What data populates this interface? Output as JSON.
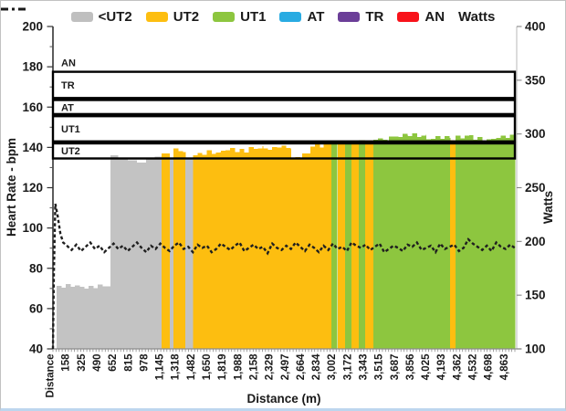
{
  "chart_data": {
    "type": "area",
    "title": "",
    "x_axis": {
      "title": "Distance (m)",
      "range_m": [
        0,
        4950
      ],
      "tick_labels": [
        "Distance",
        "158",
        "325",
        "490",
        "652",
        "815",
        "978",
        "1,145",
        "1,318",
        "1,482",
        "1,650",
        "1,819",
        "1,988",
        "2,158",
        "2,329",
        "2,497",
        "2,664",
        "2,834",
        "3,002",
        "3,172",
        "3,343",
        "3,515",
        "3,687",
        "3,856",
        "4,025",
        "4,193",
        "4,362",
        "4,532",
        "4,698",
        "4,863"
      ]
    },
    "y_left": {
      "title": "Heart Rate - bpm",
      "min": 40,
      "max": 200,
      "major_ticks": [
        200,
        180,
        160,
        140,
        120,
        100,
        80,
        60,
        40
      ],
      "minor_tick_step": 10
    },
    "y_right": {
      "title": "Watts",
      "min": 100,
      "max": 400,
      "major_ticks": [
        400,
        350,
        300,
        250,
        200,
        150,
        100
      ]
    },
    "legend": [
      {
        "label": "<UT2",
        "color": "#BFBFBF",
        "glyph": "swatch"
      },
      {
        "label": "UT2",
        "color": "#FDBE10",
        "glyph": "swatch"
      },
      {
        "label": "UT1",
        "color": "#8DC63F",
        "glyph": "swatch"
      },
      {
        "label": "AT",
        "color": "#29ABE2",
        "glyph": "swatch"
      },
      {
        "label": "TR",
        "color": "#6B3E98",
        "glyph": "swatch"
      },
      {
        "label": "AN",
        "color": "#F8121A",
        "glyph": "swatch"
      },
      {
        "label": "Watts",
        "color": "#1A1A1A",
        "glyph": "dashed-line"
      }
    ],
    "zone_colors": {
      "<UT2": "#C3C3C3",
      "UT2": "#FDBE10",
      "UT1": "#8DC63F",
      "AT": "#29ABE2",
      "TR": "#6B3E98",
      "AN": "#F8121A"
    },
    "zone_bands": [
      {
        "label": "AN",
        "hr_from": 177.5,
        "hr_to": 200,
        "boxed": false
      },
      {
        "label": "TR",
        "hr_from": 164.5,
        "hr_to": 177.5,
        "boxed": true
      },
      {
        "label": "AT",
        "hr_from": 156.5,
        "hr_to": 163.5,
        "boxed": true
      },
      {
        "label": "UT1",
        "hr_from": 143,
        "hr_to": 155.5,
        "boxed": true
      },
      {
        "label": "UT2",
        "hr_from": 134.5,
        "hr_to": 142,
        "boxed": true
      }
    ],
    "hr_segments": [
      [
        40,
        615,
        "<UT2",
        71
      ],
      [
        615,
        700,
        "<UT2",
        136
      ],
      [
        700,
        800,
        "<UT2",
        135
      ],
      [
        800,
        900,
        "<UT2",
        133.5
      ],
      [
        900,
        1000,
        "<UT2",
        132.5
      ],
      [
        1000,
        1090,
        "<UT2",
        134
      ],
      [
        1090,
        1164,
        "<UT2",
        135.5
      ],
      [
        1164,
        1250,
        "UT2",
        137
      ],
      [
        1250,
        1290,
        "<UT2",
        135
      ],
      [
        1290,
        1420,
        "UT2",
        138.5
      ],
      [
        1420,
        1500,
        "<UT2",
        134.5
      ],
      [
        1500,
        1650,
        "UT2",
        136.5
      ],
      [
        1650,
        1800,
        "UT2",
        137.5
      ],
      [
        1800,
        1950,
        "UT2",
        139
      ],
      [
        1950,
        2100,
        "UT2",
        138
      ],
      [
        2100,
        2250,
        "UT2",
        140
      ],
      [
        2250,
        2400,
        "UT2",
        139
      ],
      [
        2400,
        2550,
        "UT2",
        140.5
      ],
      [
        2550,
        2670,
        "UT2",
        134.8
      ],
      [
        2670,
        2760,
        "UT2",
        137
      ],
      [
        2760,
        2900,
        "UT2",
        141
      ],
      [
        2900,
        2985,
        "UT2",
        142
      ],
      [
        2985,
        3050,
        "UT1",
        143
      ],
      [
        3050,
        3130,
        "UT2",
        142
      ],
      [
        3130,
        3200,
        "UT1",
        143
      ],
      [
        3200,
        3275,
        "UT2",
        142.5
      ],
      [
        3275,
        3345,
        "UT1",
        143.5
      ],
      [
        3345,
        3435,
        "UT2",
        142.5
      ],
      [
        3435,
        3600,
        "UT1",
        144
      ],
      [
        3600,
        3800,
        "UT1",
        145.5
      ],
      [
        3800,
        4000,
        "UT1",
        146
      ],
      [
        4000,
        4255,
        "UT1",
        144.5
      ],
      [
        4255,
        4315,
        "UT2",
        143.5
      ],
      [
        4315,
        4500,
        "UT1",
        145.5
      ],
      [
        4500,
        4700,
        "UT1",
        144
      ],
      [
        4700,
        4950,
        "UT1",
        145
      ]
    ],
    "watts_series": [
      [
        0,
        100
      ],
      [
        10,
        170
      ],
      [
        25,
        235
      ],
      [
        50,
        224
      ],
      [
        80,
        207
      ],
      [
        110,
        199
      ],
      [
        150,
        196
      ],
      [
        200,
        192
      ],
      [
        250,
        197
      ],
      [
        300,
        191
      ],
      [
        350,
        195
      ],
      [
        400,
        199
      ],
      [
        450,
        193
      ],
      [
        500,
        196
      ],
      [
        550,
        190
      ],
      [
        600,
        194
      ],
      [
        650,
        198
      ],
      [
        700,
        193
      ],
      [
        750,
        196
      ],
      [
        800,
        191
      ],
      [
        850,
        195
      ],
      [
        900,
        199
      ],
      [
        950,
        194
      ],
      [
        1000,
        190
      ],
      [
        1050,
        196
      ],
      [
        1100,
        193
      ],
      [
        1150,
        198
      ],
      [
        1200,
        194
      ],
      [
        1250,
        191
      ],
      [
        1300,
        196
      ],
      [
        1350,
        199
      ],
      [
        1400,
        193
      ],
      [
        1450,
        195
      ],
      [
        1500,
        190
      ],
      [
        1550,
        197
      ],
      [
        1600,
        194
      ],
      [
        1650,
        196
      ],
      [
        1700,
        190
      ],
      [
        1750,
        193
      ],
      [
        1800,
        198
      ],
      [
        1850,
        195
      ],
      [
        1900,
        192
      ],
      [
        1950,
        196
      ],
      [
        2000,
        199
      ],
      [
        2050,
        191
      ],
      [
        2100,
        194
      ],
      [
        2150,
        197
      ],
      [
        2200,
        193
      ],
      [
        2250,
        195
      ],
      [
        2300,
        189
      ],
      [
        2350,
        198
      ],
      [
        2400,
        194
      ],
      [
        2450,
        192
      ],
      [
        2500,
        196
      ],
      [
        2550,
        193
      ],
      [
        2600,
        199
      ],
      [
        2650,
        195
      ],
      [
        2700,
        191
      ],
      [
        2750,
        197
      ],
      [
        2800,
        194
      ],
      [
        2850,
        190
      ],
      [
        2900,
        196
      ],
      [
        2950,
        192
      ],
      [
        3000,
        198
      ],
      [
        3050,
        193
      ],
      [
        3100,
        195
      ],
      [
        3150,
        191
      ],
      [
        3200,
        199
      ],
      [
        3250,
        196
      ],
      [
        3300,
        194
      ],
      [
        3350,
        197
      ],
      [
        3400,
        192
      ],
      [
        3450,
        195
      ],
      [
        3500,
        198
      ],
      [
        3550,
        190
      ],
      [
        3600,
        193
      ],
      [
        3650,
        196
      ],
      [
        3700,
        194
      ],
      [
        3750,
        191
      ],
      [
        3800,
        197
      ],
      [
        3850,
        195
      ],
      [
        3900,
        199
      ],
      [
        3950,
        192
      ],
      [
        4000,
        194
      ],
      [
        4050,
        196
      ],
      [
        4100,
        190
      ],
      [
        4150,
        198
      ],
      [
        4200,
        193
      ],
      [
        4250,
        195
      ],
      [
        4300,
        197
      ],
      [
        4350,
        191
      ],
      [
        4400,
        194
      ],
      [
        4450,
        202
      ],
      [
        4500,
        198
      ],
      [
        4550,
        195
      ],
      [
        4600,
        192
      ],
      [
        4650,
        196
      ],
      [
        4700,
        191
      ],
      [
        4750,
        199
      ],
      [
        4800,
        195
      ],
      [
        4850,
        193
      ],
      [
        4900,
        197
      ],
      [
        4950,
        194
      ]
    ]
  }
}
